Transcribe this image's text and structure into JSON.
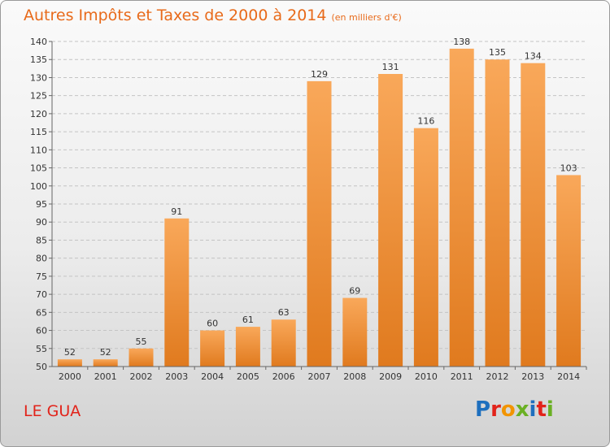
{
  "title": "Autres Impôts et Taxes de 2000 à 2014",
  "subtitle": "(en milliers d'€)",
  "place": "LE GUA",
  "logo_text": "Proxiti",
  "logo_colors": [
    "#1e6fbe",
    "#e2231a",
    "#f29400",
    "#6ab023",
    "#1e6fbe",
    "#e2231a",
    "#6ab023"
  ],
  "colors": {
    "title": "#e86a1a",
    "place": "#e2231a",
    "bar_light": "#f9a85a",
    "bar_dark": "#e07a1e"
  },
  "chart_data": {
    "type": "bar",
    "categories": [
      "2000",
      "2001",
      "2002",
      "2003",
      "2004",
      "2005",
      "2006",
      "2007",
      "2008",
      "2009",
      "2010",
      "2011",
      "2012",
      "2013",
      "2014"
    ],
    "values": [
      52,
      52,
      55,
      91,
      60,
      61,
      63,
      129,
      69,
      131,
      116,
      138,
      135,
      134,
      103
    ],
    "title": "Autres Impôts et Taxes de 2000 à 2014",
    "ylim": [
      50,
      140
    ],
    "yticks": [
      50,
      55,
      60,
      65,
      70,
      75,
      80,
      85,
      90,
      95,
      100,
      105,
      110,
      115,
      120,
      125,
      130,
      135,
      140
    ],
    "grid": true,
    "data_labels": true
  }
}
